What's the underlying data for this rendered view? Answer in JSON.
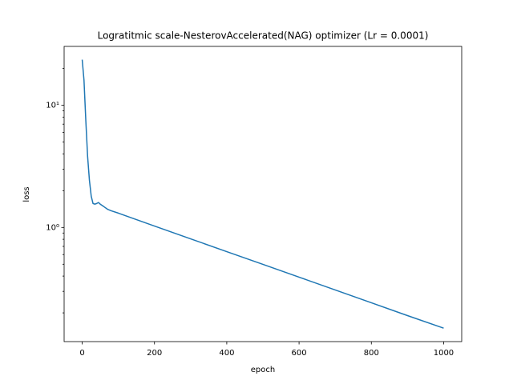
{
  "chart_data": {
    "type": "line",
    "title": "Logratitmic scale-NesterovAccelerated(NAG) optimizer (Lr = 0.0001)",
    "x_label": "epoch",
    "y_label": "loss",
    "y_scale": "log",
    "x": [
      0,
      5,
      10,
      15,
      20,
      25,
      30,
      35,
      40,
      45,
      50,
      60,
      70,
      80,
      100,
      200,
      300,
      400,
      500,
      600,
      700,
      800,
      900,
      1000
    ],
    "series": [
      {
        "name": "loss",
        "color": "#1f77b4",
        "values": [
          23.6,
          16,
          7.5,
          3.8,
          2.43,
          1.8,
          1.57,
          1.55,
          1.57,
          1.6,
          1.55,
          1.48,
          1.41,
          1.37,
          1.31,
          1.027,
          0.807,
          0.634,
          0.499,
          0.392,
          0.308,
          0.242,
          0.19,
          0.15
        ]
      }
    ],
    "xlim": [
      -50,
      1050
    ],
    "xticks": [
      0,
      200,
      400,
      600,
      800,
      1000
    ],
    "ylim": [
      0.1164,
      30.3
    ],
    "yticks": [
      {
        "value": 1,
        "label": "10⁰"
      },
      {
        "value": 10,
        "label": "10¹"
      }
    ],
    "yminorticks": [
      0.2,
      0.3,
      0.4,
      0.5,
      0.6,
      0.7,
      0.8,
      0.9,
      2,
      3,
      4,
      5,
      6,
      7,
      8,
      9,
      20
    ],
    "grid": false
  }
}
